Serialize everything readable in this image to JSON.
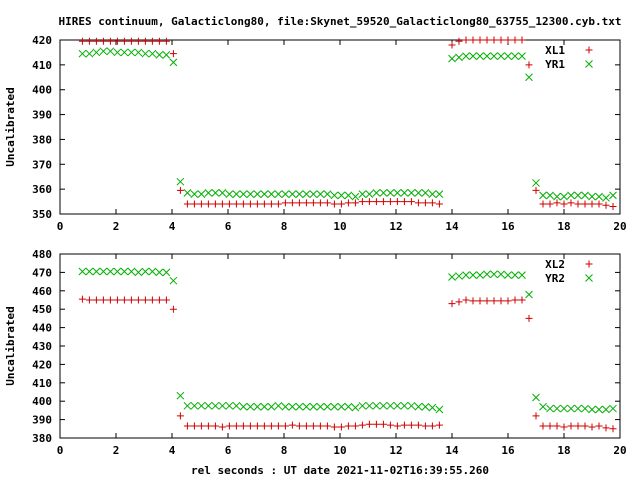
{
  "title": "HIRES continuum, Galacticlong80, file:Skynet_59520_Galacticlong80_63755_12300.cyb.txt",
  "xlabel": "rel seconds : UT date 2021-11-02T16:39:55.260",
  "colors": {
    "red": "#d00000",
    "green": "#00b000",
    "axis": "#000000"
  },
  "chart_data": [
    {
      "type": "scatter",
      "ylabel": "Uncalibrated",
      "xlim": [
        0,
        20
      ],
      "ylim": [
        350,
        420
      ],
      "xticks": [
        0,
        2,
        4,
        6,
        8,
        10,
        12,
        14,
        16,
        18,
        20
      ],
      "yticks": [
        350,
        360,
        370,
        380,
        390,
        400,
        410,
        420
      ],
      "legend_position": "top-right",
      "grid": false,
      "series": [
        {
          "name": "XL1",
          "marker": "+",
          "color": "#d00000",
          "x": [
            0.8,
            1.05,
            1.3,
            1.55,
            1.8,
            2.05,
            2.3,
            2.55,
            2.8,
            3.05,
            3.3,
            3.55,
            3.8,
            4.05,
            4.3,
            4.55,
            4.8,
            5.05,
            5.3,
            5.55,
            5.8,
            6.05,
            6.3,
            6.55,
            6.8,
            7.05,
            7.3,
            7.55,
            7.8,
            8.05,
            8.3,
            8.55,
            8.8,
            9.05,
            9.3,
            9.55,
            9.8,
            10.05,
            10.3,
            10.55,
            10.8,
            11.05,
            11.3,
            11.55,
            11.8,
            12.05,
            12.3,
            12.55,
            12.8,
            13.05,
            13.3,
            13.55,
            14.0,
            14.25,
            14.5,
            14.75,
            15.0,
            15.25,
            15.5,
            15.75,
            16.0,
            16.25,
            16.5,
            16.75,
            17.0,
            17.25,
            17.5,
            17.75,
            18.0,
            18.25,
            18.5,
            18.75,
            19.0,
            19.25,
            19.5,
            19.75
          ],
          "y": [
            419.5,
            419.5,
            419.5,
            419.5,
            419.5,
            419.5,
            419.5,
            419.5,
            419.5,
            419.5,
            419.5,
            419.5,
            419.5,
            414.5,
            359.5,
            354,
            354,
            354,
            354,
            354,
            354,
            354,
            354,
            354,
            354,
            354,
            354,
            354,
            354,
            354.5,
            354.5,
            354.5,
            354.5,
            354.5,
            354.5,
            354.5,
            354,
            354,
            354.5,
            354.5,
            355,
            355,
            355,
            355,
            355,
            355,
            355,
            355,
            354.5,
            354.5,
            354.5,
            354,
            418,
            419.5,
            420,
            420,
            420,
            420,
            420,
            420,
            420,
            420,
            420,
            410,
            359.5,
            354,
            354,
            354.5,
            354,
            354.5,
            354,
            354,
            354,
            354,
            353.5,
            353
          ]
        },
        {
          "name": "YR1",
          "marker": "x",
          "color": "#00b000",
          "x": [
            0.8,
            1.05,
            1.3,
            1.55,
            1.8,
            2.05,
            2.3,
            2.55,
            2.8,
            3.05,
            3.3,
            3.55,
            3.8,
            4.05,
            4.3,
            4.55,
            4.8,
            5.05,
            5.3,
            5.55,
            5.8,
            6.05,
            6.3,
            6.55,
            6.8,
            7.05,
            7.3,
            7.55,
            7.8,
            8.05,
            8.3,
            8.55,
            8.8,
            9.05,
            9.3,
            9.55,
            9.8,
            10.05,
            10.3,
            10.55,
            10.8,
            11.05,
            11.3,
            11.55,
            11.8,
            12.05,
            12.3,
            12.55,
            12.8,
            13.05,
            13.3,
            13.55,
            14.0,
            14.25,
            14.5,
            14.75,
            15.0,
            15.25,
            15.5,
            15.75,
            16.0,
            16.25,
            16.5,
            16.75,
            17.0,
            17.25,
            17.5,
            17.75,
            18.0,
            18.25,
            18.5,
            18.75,
            19.0,
            19.25,
            19.5,
            19.75
          ],
          "y": [
            414.5,
            414.5,
            415,
            415.5,
            415.5,
            415,
            415,
            415,
            415,
            414.5,
            414.5,
            414,
            414,
            411,
            363,
            358.5,
            358,
            358,
            358.5,
            358.5,
            358.5,
            358,
            358,
            358,
            358,
            358,
            358,
            358,
            358,
            358,
            358,
            358,
            358,
            358,
            358,
            358,
            357.5,
            357.5,
            357.5,
            357,
            358,
            358,
            358.5,
            358.5,
            358.5,
            358.5,
            358.5,
            358.5,
            358.5,
            358.5,
            358,
            358,
            412.5,
            413,
            413.5,
            413.5,
            413.5,
            413.5,
            413.5,
            413.5,
            413.5,
            413.5,
            413.5,
            405,
            362.5,
            357.5,
            357.5,
            357,
            357,
            357.5,
            357.5,
            357.5,
            357,
            357,
            356.5,
            357.5
          ]
        }
      ]
    },
    {
      "type": "scatter",
      "ylabel": "Uncalibrated",
      "xlim": [
        0,
        20
      ],
      "ylim": [
        380,
        480
      ],
      "xticks": [
        0,
        2,
        4,
        6,
        8,
        10,
        12,
        14,
        16,
        18,
        20
      ],
      "yticks": [
        380,
        390,
        400,
        410,
        420,
        430,
        440,
        450,
        460,
        470,
        480
      ],
      "legend_position": "top-right",
      "grid": false,
      "series": [
        {
          "name": "XL2",
          "marker": "+",
          "color": "#d00000",
          "x": [
            0.8,
            1.05,
            1.3,
            1.55,
            1.8,
            2.05,
            2.3,
            2.55,
            2.8,
            3.05,
            3.3,
            3.55,
            3.8,
            4.05,
            4.3,
            4.55,
            4.8,
            5.05,
            5.3,
            5.55,
            5.8,
            6.05,
            6.3,
            6.55,
            6.8,
            7.05,
            7.3,
            7.55,
            7.8,
            8.05,
            8.3,
            8.55,
            8.8,
            9.05,
            9.3,
            9.55,
            9.8,
            10.05,
            10.3,
            10.55,
            10.8,
            11.05,
            11.3,
            11.55,
            11.8,
            12.05,
            12.3,
            12.55,
            12.8,
            13.05,
            13.3,
            13.55,
            14.0,
            14.25,
            14.5,
            14.75,
            15.0,
            15.25,
            15.5,
            15.75,
            16.0,
            16.25,
            16.5,
            16.75,
            17.0,
            17.25,
            17.5,
            17.75,
            18.0,
            18.25,
            18.5,
            18.75,
            19.0,
            19.25,
            19.5,
            19.75
          ],
          "y": [
            455.5,
            455,
            455,
            455,
            455,
            455,
            455,
            455,
            455,
            455,
            455,
            455,
            455,
            450,
            392,
            386.5,
            386.5,
            386.5,
            386.5,
            386.5,
            386,
            386.5,
            386.5,
            386.5,
            386.5,
            386.5,
            386.5,
            386.5,
            386.5,
            386.5,
            387,
            386.5,
            386.5,
            386.5,
            386.5,
            386.5,
            386,
            386,
            386.5,
            386.5,
            387,
            387.5,
            387.5,
            387.5,
            387,
            386.5,
            387,
            387,
            387,
            386.5,
            386.5,
            387,
            453,
            454,
            455,
            454.5,
            454.5,
            454.5,
            454.5,
            454.5,
            454.5,
            455,
            455,
            445,
            392,
            386.5,
            386.5,
            386.5,
            386,
            386.5,
            386.5,
            386.5,
            386,
            386.5,
            385.5,
            385
          ]
        },
        {
          "name": "YR2",
          "marker": "x",
          "color": "#00b000",
          "x": [
            0.8,
            1.05,
            1.3,
            1.55,
            1.8,
            2.05,
            2.3,
            2.55,
            2.8,
            3.05,
            3.3,
            3.55,
            3.8,
            4.05,
            4.3,
            4.55,
            4.8,
            5.05,
            5.3,
            5.55,
            5.8,
            6.05,
            6.3,
            6.55,
            6.8,
            7.05,
            7.3,
            7.55,
            7.8,
            8.05,
            8.3,
            8.55,
            8.8,
            9.05,
            9.3,
            9.55,
            9.8,
            10.05,
            10.3,
            10.55,
            10.8,
            11.05,
            11.3,
            11.55,
            11.8,
            12.05,
            12.3,
            12.55,
            12.8,
            13.05,
            13.3,
            13.55,
            14.0,
            14.25,
            14.5,
            14.75,
            15.0,
            15.25,
            15.5,
            15.75,
            16.0,
            16.25,
            16.5,
            16.75,
            17.0,
            17.25,
            17.5,
            17.75,
            18.0,
            18.25,
            18.5,
            18.75,
            19.0,
            19.25,
            19.5,
            19.75
          ],
          "y": [
            470.5,
            470.5,
            470.5,
            470.5,
            470.5,
            470.5,
            470.5,
            470.5,
            470,
            470.5,
            470.5,
            470,
            470,
            465.5,
            403,
            397.5,
            397.5,
            397.5,
            397.5,
            397.5,
            397.5,
            397.5,
            397.5,
            397,
            397,
            397,
            397,
            397,
            397.5,
            397,
            397,
            397,
            397,
            397,
            397,
            397,
            397,
            397,
            397,
            396.5,
            397.5,
            397.5,
            397.5,
            397.5,
            397.5,
            397.5,
            397.5,
            397.5,
            397,
            397,
            396.5,
            395.5,
            467.5,
            468,
            468.5,
            468.5,
            468.5,
            469,
            469,
            469,
            468.5,
            468.5,
            468.5,
            458,
            402,
            397,
            396,
            396,
            396,
            396,
            396,
            396,
            395.5,
            395.5,
            395.5,
            396
          ]
        }
      ]
    }
  ]
}
